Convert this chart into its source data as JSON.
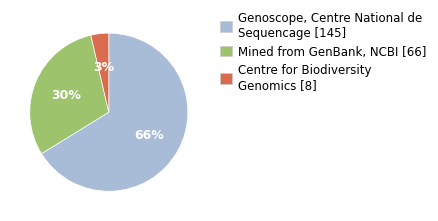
{
  "slices": [
    145,
    66,
    8
  ],
  "labels": [
    "Genoscope, Centre National de\nSequencage [145]",
    "Mined from GenBank, NCBI [66]",
    "Centre for Biodiversity\nGenomics [8]"
  ],
  "colors": [
    "#a8bcd8",
    "#9dc46c",
    "#d96b4e"
  ],
  "pct_labels": [
    "66%",
    "30%",
    "3%"
  ],
  "startangle": 90,
  "background_color": "#ffffff",
  "text_color": "#ffffff",
  "fontsize": 9,
  "legend_fontsize": 8.5
}
